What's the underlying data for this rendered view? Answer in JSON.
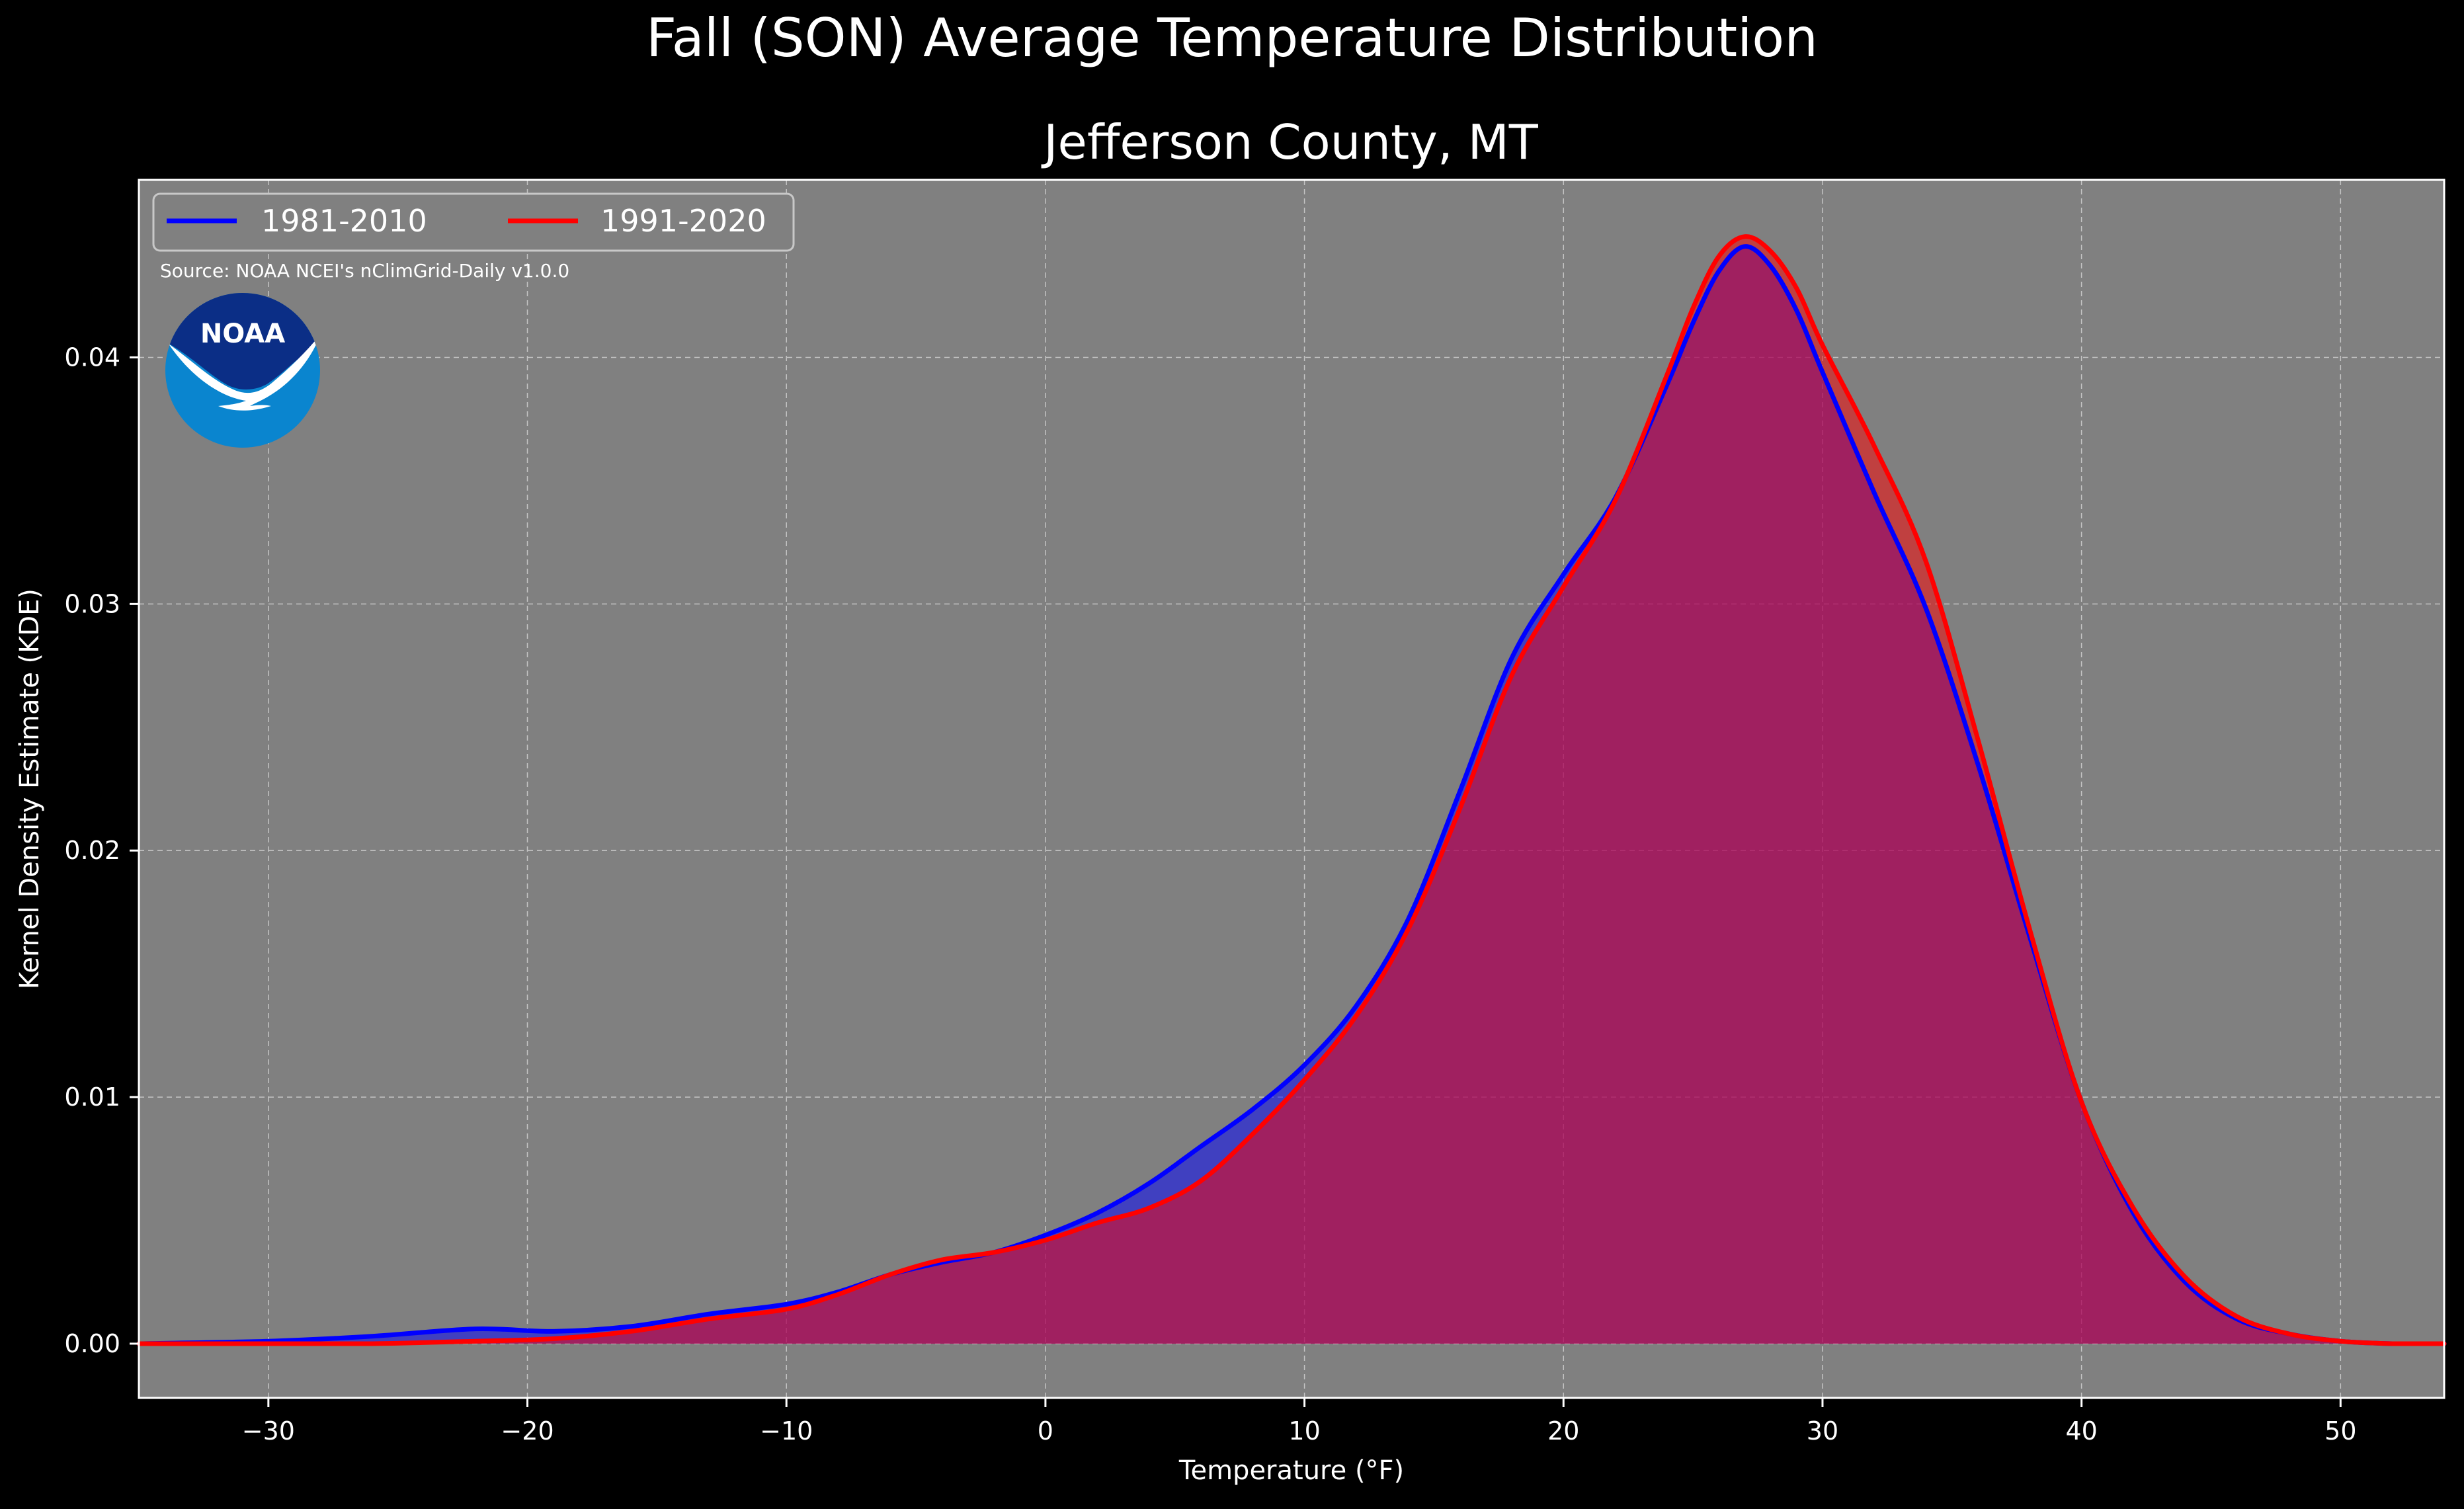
{
  "chart_data": {
    "type": "area",
    "title": "Fall (SON) Average Temperature Distribution",
    "subtitle": "Jefferson County, MT",
    "xlabel": "Temperature (°F)",
    "ylabel": "Kernel Density Estimate (KDE)",
    "source": "Source: NOAA NCEI's nClimGrid-Daily v1.0.0",
    "logo_text": "NOAA",
    "xlim": [
      -35,
      54
    ],
    "ylim": [
      -0.0022,
      0.0472
    ],
    "x_ticks": [
      -30,
      -20,
      -10,
      0,
      10,
      20,
      30,
      40,
      50
    ],
    "x_tick_labels": [
      "−30",
      "−20",
      "−10",
      "0",
      "10",
      "20",
      "30",
      "40",
      "50"
    ],
    "y_ticks": [
      0.0,
      0.01,
      0.02,
      0.03,
      0.04
    ],
    "y_tick_labels": [
      "0.00",
      "0.01",
      "0.02",
      "0.03",
      "0.04"
    ],
    "grid": true,
    "legend_position": "top-left",
    "colors": {
      "background": "#000000",
      "plot_background": "#808080",
      "series_1": "#0000ff",
      "series_2": "#ff0000",
      "text": "#ffffff"
    },
    "series": [
      {
        "name": "1981-2010",
        "color": "#0000ff",
        "x": [
          -35,
          -30,
          -26,
          -22,
          -19,
          -16,
          -13,
          -10,
          -8,
          -6,
          -4,
          -2,
          0,
          2,
          4,
          6,
          8,
          10,
          12,
          14,
          16,
          18,
          20,
          22,
          24,
          25,
          26,
          27,
          28,
          29,
          30,
          32,
          34,
          36,
          38,
          40,
          42,
          44,
          46,
          48,
          50,
          52,
          54
        ],
        "y": [
          0.0,
          0.0001,
          0.0003,
          0.0006,
          0.0005,
          0.0007,
          0.0012,
          0.0016,
          0.0021,
          0.0028,
          0.0033,
          0.0037,
          0.0044,
          0.0053,
          0.0065,
          0.008,
          0.0095,
          0.0113,
          0.0137,
          0.0172,
          0.0224,
          0.0278,
          0.0312,
          0.0343,
          0.0389,
          0.0414,
          0.0435,
          0.0445,
          0.0437,
          0.0419,
          0.0394,
          0.0345,
          0.0298,
          0.0235,
          0.0165,
          0.0098,
          0.0053,
          0.0025,
          0.001,
          0.0004,
          0.0001,
          0.0,
          0.0
        ]
      },
      {
        "name": "1991-2020",
        "color": "#ff0000",
        "x": [
          -35,
          -30,
          -26,
          -22,
          -19,
          -16,
          -13,
          -10,
          -8,
          -6,
          -4,
          -2,
          0,
          2,
          4,
          6,
          8,
          10,
          12,
          14,
          16,
          18,
          20,
          22,
          24,
          25,
          26,
          27,
          28,
          29,
          30,
          32,
          34,
          36,
          38,
          40,
          42,
          44,
          46,
          48,
          50,
          52,
          54
        ],
        "y": [
          0.0,
          0.0,
          0.0,
          0.0001,
          0.0002,
          0.0005,
          0.001,
          0.0014,
          0.002,
          0.0028,
          0.0034,
          0.0037,
          0.0042,
          0.0049,
          0.0055,
          0.0066,
          0.0085,
          0.0107,
          0.0133,
          0.0168,
          0.0217,
          0.0271,
          0.0307,
          0.0342,
          0.0393,
          0.042,
          0.0441,
          0.0449,
          0.0443,
          0.0428,
          0.0405,
          0.0364,
          0.0317,
          0.0245,
          0.0168,
          0.0098,
          0.0055,
          0.0027,
          0.0011,
          0.0004,
          0.0001,
          0.0,
          0.0
        ]
      }
    ]
  }
}
